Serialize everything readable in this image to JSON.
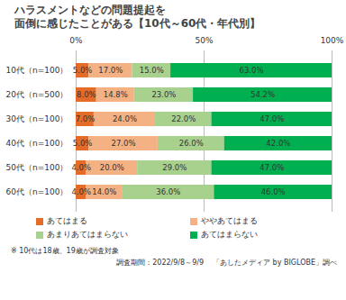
{
  "chart_data": {
    "type": "bar",
    "orientation": "horizontal",
    "stacked": true,
    "data_labels": true,
    "grid": true,
    "legend": "bottom",
    "title": "ハラスメントなどの問題提起を\n面倒に感じたことがある【10代～60代・年代別】",
    "categories": [
      "10代（n=100）",
      "20代（n=500）",
      "30代（n=100）",
      "40代（n=100）",
      "50代（n=100）",
      "60代（n=100）"
    ],
    "xlim": [
      0,
      100
    ],
    "xticks": [
      {
        "value": 0,
        "label": "0%"
      },
      {
        "value": 50,
        "label": "50%"
      },
      {
        "value": 100,
        "label": "100%"
      }
    ],
    "series": [
      {
        "name": "あてはまる",
        "color": "#e46c28",
        "values": [
          5.0,
          8.0,
          7.0,
          5.0,
          4.0,
          4.0
        ],
        "value_labels": [
          "5.0%",
          "8.0%",
          "7.0%",
          "5.0%",
          "4.0%",
          "4.0%"
        ]
      },
      {
        "name": "ややあてはまる",
        "color": "#f4b183",
        "values": [
          17.0,
          14.8,
          24.0,
          27.0,
          20.0,
          14.0
        ],
        "value_labels": [
          "17.0%",
          "14.8%",
          "24.0%",
          "27.0%",
          "20.0%",
          "14.0%"
        ]
      },
      {
        "name": "あまりあてはまらない",
        "color": "#a9d18e",
        "values": [
          15.0,
          23.0,
          22.0,
          26.0,
          29.0,
          36.0
        ],
        "value_labels": [
          "15.0%",
          "23.0%",
          "22.0%",
          "26.0%",
          "29.0%",
          "36.0%"
        ]
      },
      {
        "name": "あてはまらない",
        "color": "#00b050",
        "values": [
          63.0,
          54.2,
          47.0,
          42.0,
          47.0,
          46.0
        ],
        "value_labels": [
          "63.0%",
          "54.2%",
          "47.0%",
          "42.0%",
          "47.0%",
          "46.0%"
        ]
      }
    ],
    "note": "※ 10代は18歳、19歳が調査対象",
    "source": [
      "調査期間：2022/9/8～9/9",
      "「あしたメディア by BIGLOBE」調べ"
    ]
  }
}
